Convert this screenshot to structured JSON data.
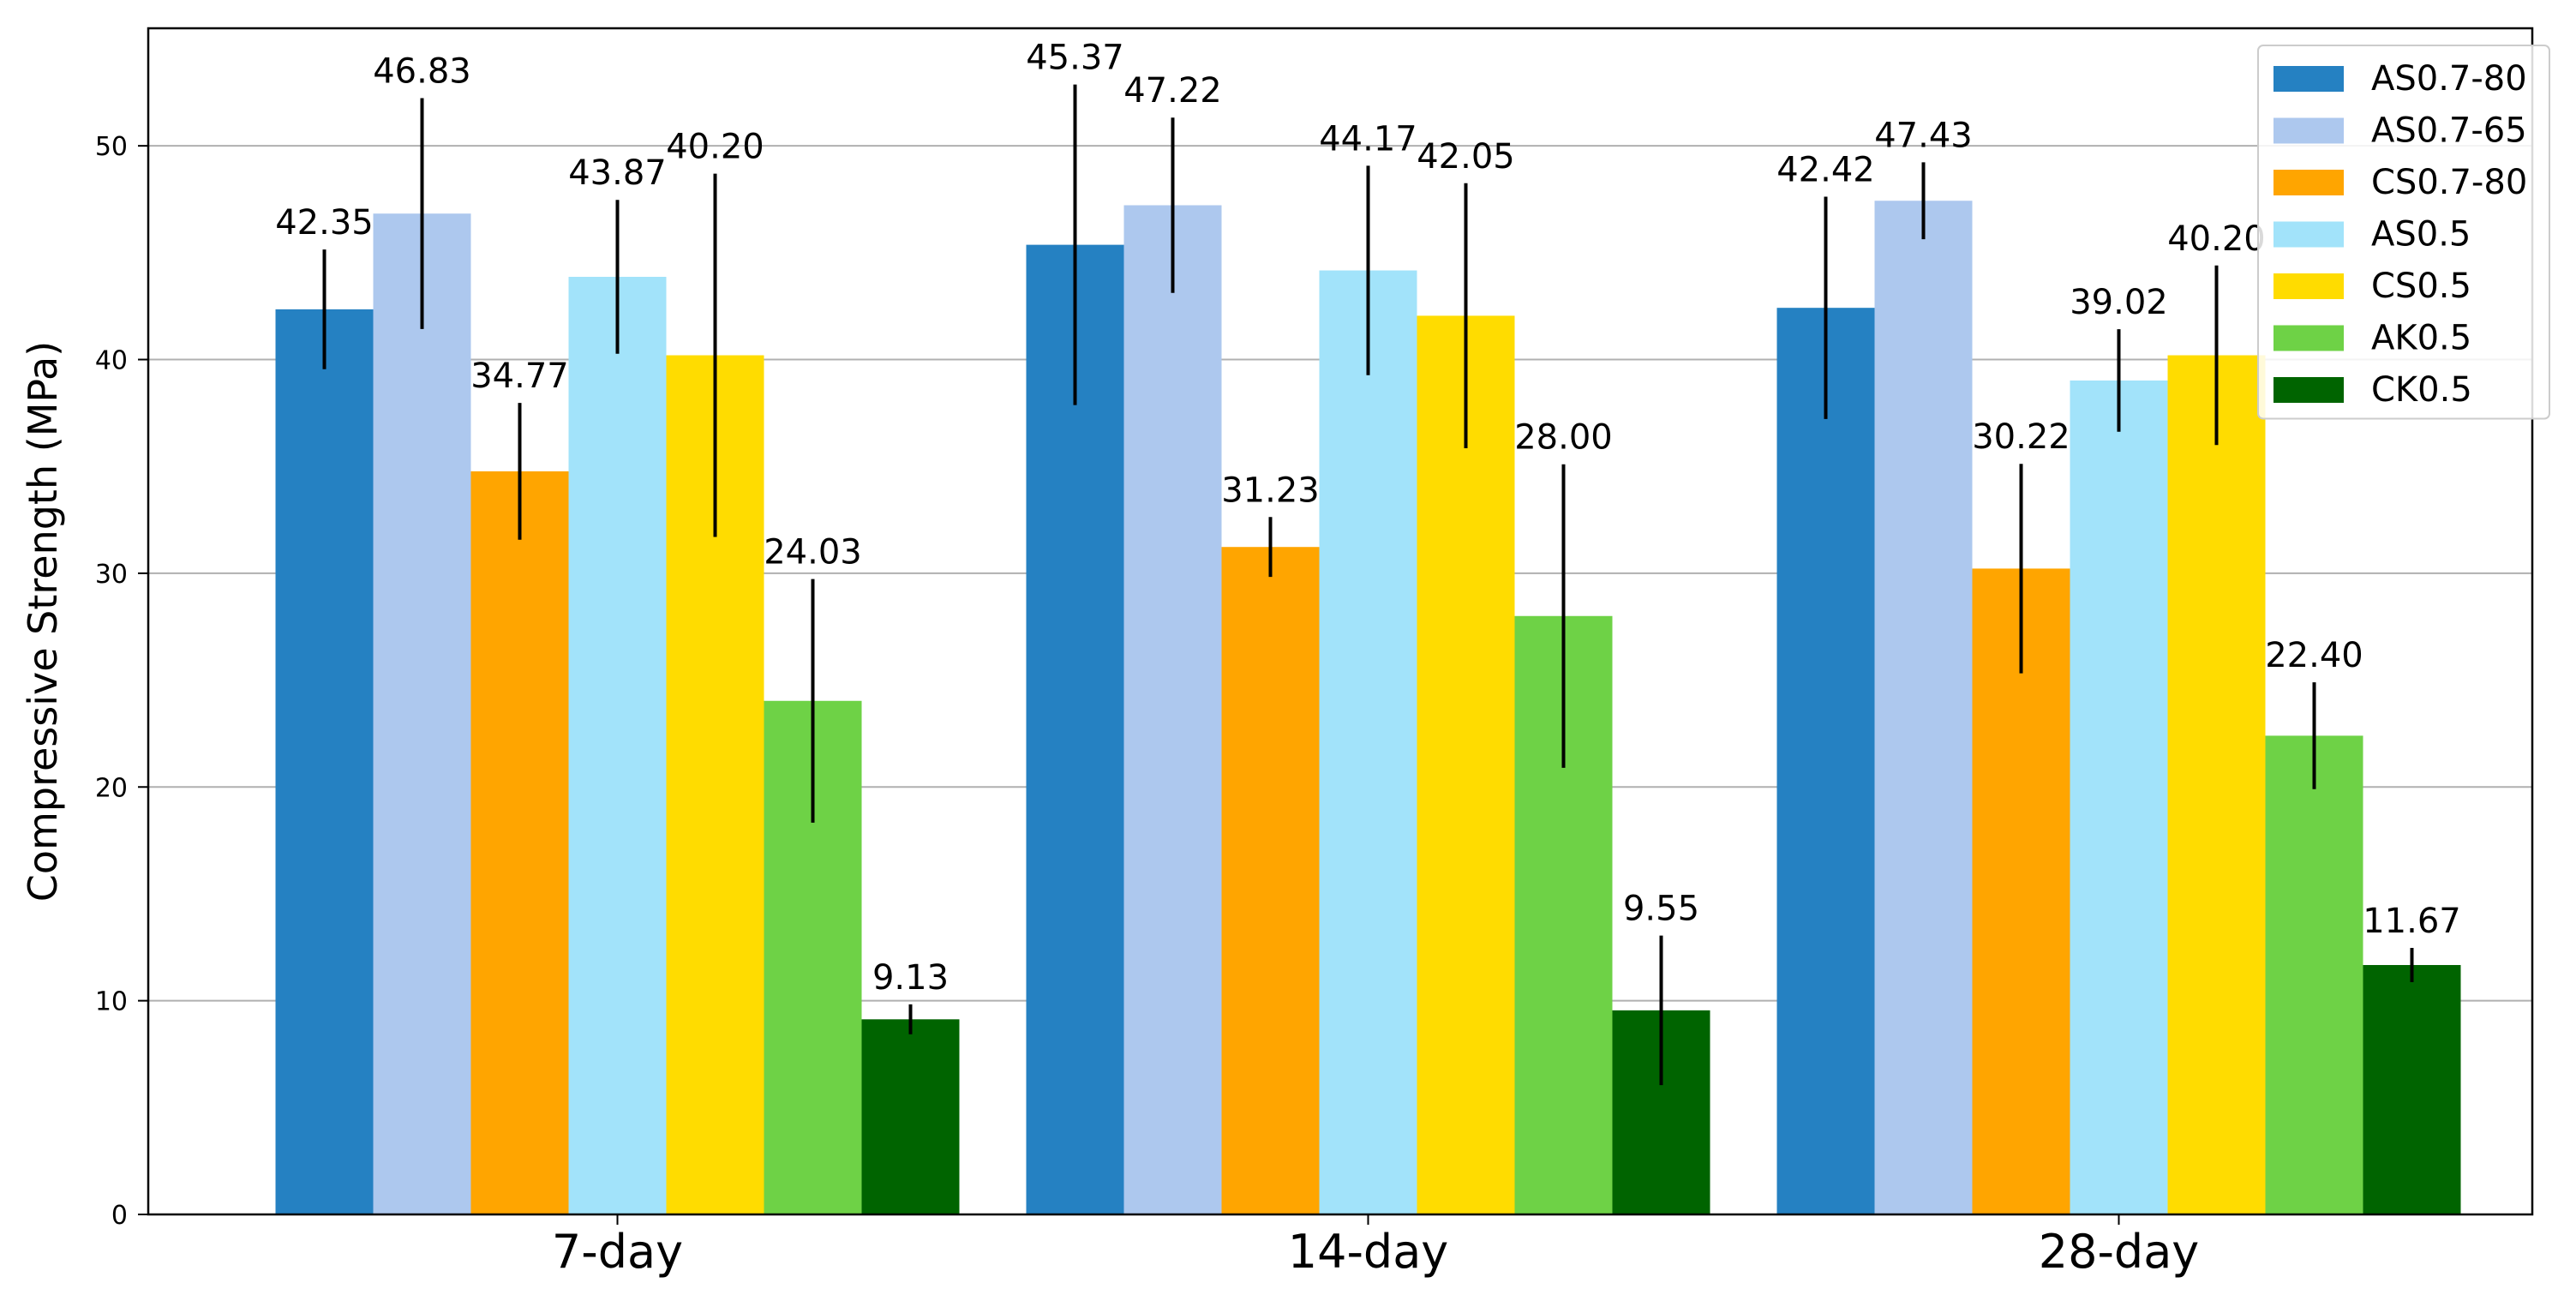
{
  "chart_data": {
    "type": "bar",
    "title": "",
    "xlabel": "",
    "ylabel": "Compressive Strength (MPa)",
    "ylim": [
      0,
      55.5
    ],
    "yticks": [
      0,
      10,
      20,
      30,
      40,
      50
    ],
    "grid": "y",
    "legend_position": "top-right",
    "categories": [
      "7-day",
      "14-day",
      "28-day"
    ],
    "series": [
      {
        "name": "AS0.7-80",
        "color": "#2581c2",
        "values": [
          42.35,
          45.37,
          42.42
        ],
        "errors": [
          2.8,
          7.5,
          5.2
        ],
        "labels": [
          "42.35",
          "45.37",
          "42.42"
        ]
      },
      {
        "name": "AS0.7-65",
        "color": "#adc8ee",
        "values": [
          46.83,
          47.22,
          47.43
        ],
        "errors": [
          5.4,
          4.1,
          1.8
        ],
        "labels": [
          "46.83",
          "47.22",
          "47.43"
        ]
      },
      {
        "name": "CS0.7-80",
        "color": "#ffa500",
        "values": [
          34.77,
          31.23,
          30.22
        ],
        "errors": [
          3.2,
          1.4,
          4.9
        ],
        "labels": [
          "34.77",
          "31.23",
          "30.22"
        ]
      },
      {
        "name": "AS0.5",
        "color": "#a2e3fa",
        "values": [
          43.87,
          44.17,
          39.02
        ],
        "errors": [
          3.6,
          4.9,
          2.4
        ],
        "labels": [
          "43.87",
          "44.17",
          "39.02"
        ]
      },
      {
        "name": "CS0.5",
        "color": "#ffdc00",
        "values": [
          40.2,
          42.05,
          40.2
        ],
        "errors": [
          8.5,
          6.2,
          4.2
        ],
        "labels": [
          "40.20",
          "42.05",
          "40.20"
        ]
      },
      {
        "name": "AK0.5",
        "color": "#6ed246",
        "values": [
          24.03,
          28.0,
          22.4
        ],
        "errors": [
          5.7,
          7.1,
          2.5
        ],
        "labels": [
          "24.03",
          "28.00",
          "22.40"
        ]
      },
      {
        "name": "CK0.5",
        "color": "#006400",
        "values": [
          9.13,
          9.55,
          11.67
        ],
        "errors": [
          0.7,
          3.5,
          0.8
        ],
        "labels": [
          "9.13",
          "9.55",
          "11.67"
        ]
      }
    ]
  }
}
